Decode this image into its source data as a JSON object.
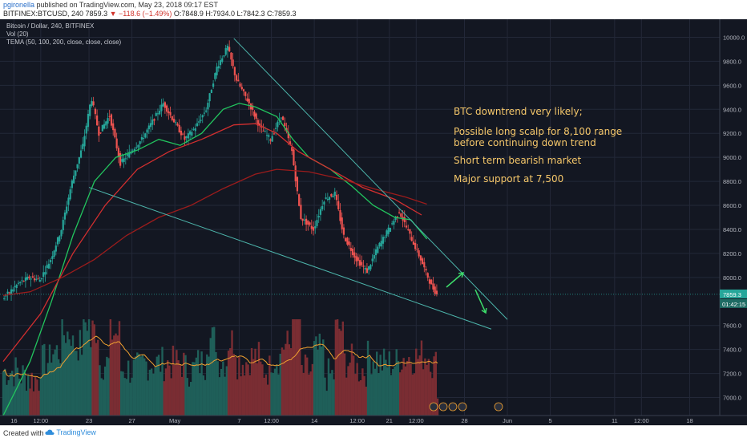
{
  "header": {
    "publisher": "pgironella",
    "published_text": "published on TradingView.com, May 23, 2018 09:17 EST",
    "symbol": "BITFINEX:BTCUSD, 240",
    "last": "7859.3",
    "change": "▼ −118.6 (−1.49%)",
    "ohlc": "O:7848.9 H:7934.0 L:7842.3 C:7859.3"
  },
  "legend": {
    "title": "Bitcoin / Dollar, 240, BITFINEX",
    "vol": "Vol (20)",
    "tema": "TEMA (50, 100, 200, close, close, close)"
  },
  "annotations": [
    "BTC downtrend very likely;",
    "Possible long scalp for 8,100 range",
    "before continuing down trend",
    "Short term bearish market",
    "Major support at 7,500"
  ],
  "footer": {
    "created_with": "Created with",
    "brand": "TradingView"
  },
  "colors": {
    "background": "#131722",
    "up": "#26a69a",
    "down": "#ef5350",
    "trendline": "#4db6ac",
    "ma_green": "#22c55e",
    "ma_red": "#d32f2f",
    "ma_dark_red": "#9b1c1c",
    "vol_ma": "#f0a030",
    "arrow": "#3ddc6a",
    "price_label": "#26a69a"
  },
  "chart_data": {
    "type": "line",
    "title": "Bitcoin / Dollar, 240, BITFINEX",
    "price_axis": {
      "range": [
        6850,
        10150
      ],
      "ticks": [
        10000,
        9800,
        9600,
        9400,
        9200,
        9000,
        8800,
        8600,
        8400,
        8200,
        8000,
        7600,
        7400,
        7200,
        7000
      ]
    },
    "time_axis": {
      "ticks": [
        {
          "label": "16",
          "t": 0.5
        },
        {
          "label": "12:00",
          "t": 3
        },
        {
          "label": "23",
          "t": 7.5
        },
        {
          "label": "27",
          "t": 11.5
        },
        {
          "label": "May",
          "t": 15.5
        },
        {
          "label": "7",
          "t": 21.5
        },
        {
          "label": "12:00",
          "t": 24.5
        },
        {
          "label": "14",
          "t": 28.5
        },
        {
          "label": "12:00",
          "t": 32.5
        },
        {
          "label": "21",
          "t": 35.5
        },
        {
          "label": "12:00",
          "t": 38
        },
        {
          "label": "28",
          "t": 42.5
        },
        {
          "label": "Jun",
          "t": 46.5
        },
        {
          "label": "5",
          "t": 50.5
        },
        {
          "label": "11",
          "t": 56.5
        },
        {
          "label": "12:00",
          "t": 59
        },
        {
          "label": "18",
          "t": 63.5
        }
      ],
      "t_range": [
        -0.8,
        66.3
      ]
    },
    "price_path": [
      {
        "t": -0.5,
        "p": 7820
      },
      {
        "t": 1,
        "p": 7950
      },
      {
        "t": 2,
        "p": 8000
      },
      {
        "t": 3,
        "p": 7980
      },
      {
        "t": 4,
        "p": 8150
      },
      {
        "t": 5,
        "p": 8400
      },
      {
        "t": 6,
        "p": 8800
      },
      {
        "t": 7,
        "p": 9100
      },
      {
        "t": 7.8,
        "p": 9500
      },
      {
        "t": 8.5,
        "p": 9200
      },
      {
        "t": 9.5,
        "p": 9350
      },
      {
        "t": 10.5,
        "p": 8950
      },
      {
        "t": 11.5,
        "p": 9050
      },
      {
        "t": 12.5,
        "p": 9150
      },
      {
        "t": 13.5,
        "p": 9300
      },
      {
        "t": 14.5,
        "p": 9450
      },
      {
        "t": 15.5,
        "p": 9300
      },
      {
        "t": 16.5,
        "p": 9150
      },
      {
        "t": 17.5,
        "p": 9250
      },
      {
        "t": 18.5,
        "p": 9400
      },
      {
        "t": 19.5,
        "p": 9750
      },
      {
        "t": 20.5,
        "p": 9920
      },
      {
        "t": 21.3,
        "p": 9650
      },
      {
        "t": 22.5,
        "p": 9450
      },
      {
        "t": 23.5,
        "p": 9250
      },
      {
        "t": 24.5,
        "p": 9150
      },
      {
        "t": 25.5,
        "p": 9350
      },
      {
        "t": 26.5,
        "p": 9050
      },
      {
        "t": 27.3,
        "p": 8500
      },
      {
        "t": 28.5,
        "p": 8400
      },
      {
        "t": 29.5,
        "p": 8650
      },
      {
        "t": 30.5,
        "p": 8700
      },
      {
        "t": 31.3,
        "p": 8350
      },
      {
        "t": 32.5,
        "p": 8150
      },
      {
        "t": 33.5,
        "p": 8050
      },
      {
        "t": 34.5,
        "p": 8250
      },
      {
        "t": 35.5,
        "p": 8400
      },
      {
        "t": 36.5,
        "p": 8550
      },
      {
        "t": 37.5,
        "p": 8350
      },
      {
        "t": 38.5,
        "p": 8150
      },
      {
        "t": 39.5,
        "p": 7930
      },
      {
        "t": 40,
        "p": 7860
      }
    ],
    "series": [
      {
        "name": "TEMA 50",
        "color": "#22c55e",
        "points": [
          {
            "t": -0.5,
            "p": 6850
          },
          {
            "t": 2,
            "p": 7300
          },
          {
            "t": 4,
            "p": 7800
          },
          {
            "t": 6,
            "p": 8350
          },
          {
            "t": 8,
            "p": 8800
          },
          {
            "t": 10,
            "p": 9000
          },
          {
            "t": 12,
            "p": 9060
          },
          {
            "t": 14,
            "p": 9150
          },
          {
            "t": 16,
            "p": 9100
          },
          {
            "t": 18,
            "p": 9200
          },
          {
            "t": 20,
            "p": 9400
          },
          {
            "t": 21.5,
            "p": 9450
          },
          {
            "t": 23,
            "p": 9420
          },
          {
            "t": 25,
            "p": 9340
          },
          {
            "t": 26.5,
            "p": 9150
          },
          {
            "t": 28,
            "p": 9000
          },
          {
            "t": 30,
            "p": 8900
          },
          {
            "t": 32,
            "p": 8760
          },
          {
            "t": 34,
            "p": 8600
          },
          {
            "t": 36,
            "p": 8500
          },
          {
            "t": 37.5,
            "p": 8480
          },
          {
            "t": 39,
            "p": 8320
          }
        ]
      },
      {
        "name": "TEMA 100",
        "color": "#d32f2f",
        "points": [
          {
            "t": -0.5,
            "p": 7300
          },
          {
            "t": 3,
            "p": 7700
          },
          {
            "t": 6,
            "p": 8200
          },
          {
            "t": 9,
            "p": 8600
          },
          {
            "t": 12,
            "p": 8900
          },
          {
            "t": 15,
            "p": 9050
          },
          {
            "t": 18,
            "p": 9150
          },
          {
            "t": 21,
            "p": 9270
          },
          {
            "t": 23,
            "p": 9280
          },
          {
            "t": 25,
            "p": 9200
          },
          {
            "t": 27,
            "p": 9050
          },
          {
            "t": 30,
            "p": 8900
          },
          {
            "t": 33,
            "p": 8750
          },
          {
            "t": 36,
            "p": 8650
          },
          {
            "t": 38.5,
            "p": 8520
          }
        ]
      },
      {
        "name": "TEMA 200",
        "color": "#9b1c1c",
        "points": [
          {
            "t": -0.5,
            "p": 7850
          },
          {
            "t": 2,
            "p": 7880
          },
          {
            "t": 5,
            "p": 8000
          },
          {
            "t": 8,
            "p": 8150
          },
          {
            "t": 11,
            "p": 8350
          },
          {
            "t": 14,
            "p": 8500
          },
          {
            "t": 17,
            "p": 8600
          },
          {
            "t": 20,
            "p": 8740
          },
          {
            "t": 23,
            "p": 8860
          },
          {
            "t": 25,
            "p": 8900
          },
          {
            "t": 28,
            "p": 8880
          },
          {
            "t": 31,
            "p": 8820
          },
          {
            "t": 34,
            "p": 8740
          },
          {
            "t": 37,
            "p": 8670
          },
          {
            "t": 39,
            "p": 8610
          }
        ]
      }
    ],
    "trendlines": [
      {
        "from": {
          "t": 21,
          "p": 9990
        },
        "to": {
          "t": 46.5,
          "p": 7650
        }
      },
      {
        "from": {
          "t": 7.5,
          "p": 8750
        },
        "to": {
          "t": 45,
          "p": 7570
        }
      }
    ],
    "current_price": 7859.3,
    "price_labels": [
      "7859.3",
      "01:42:15"
    ],
    "volume": {
      "ma_name": "Vol (20)"
    }
  }
}
